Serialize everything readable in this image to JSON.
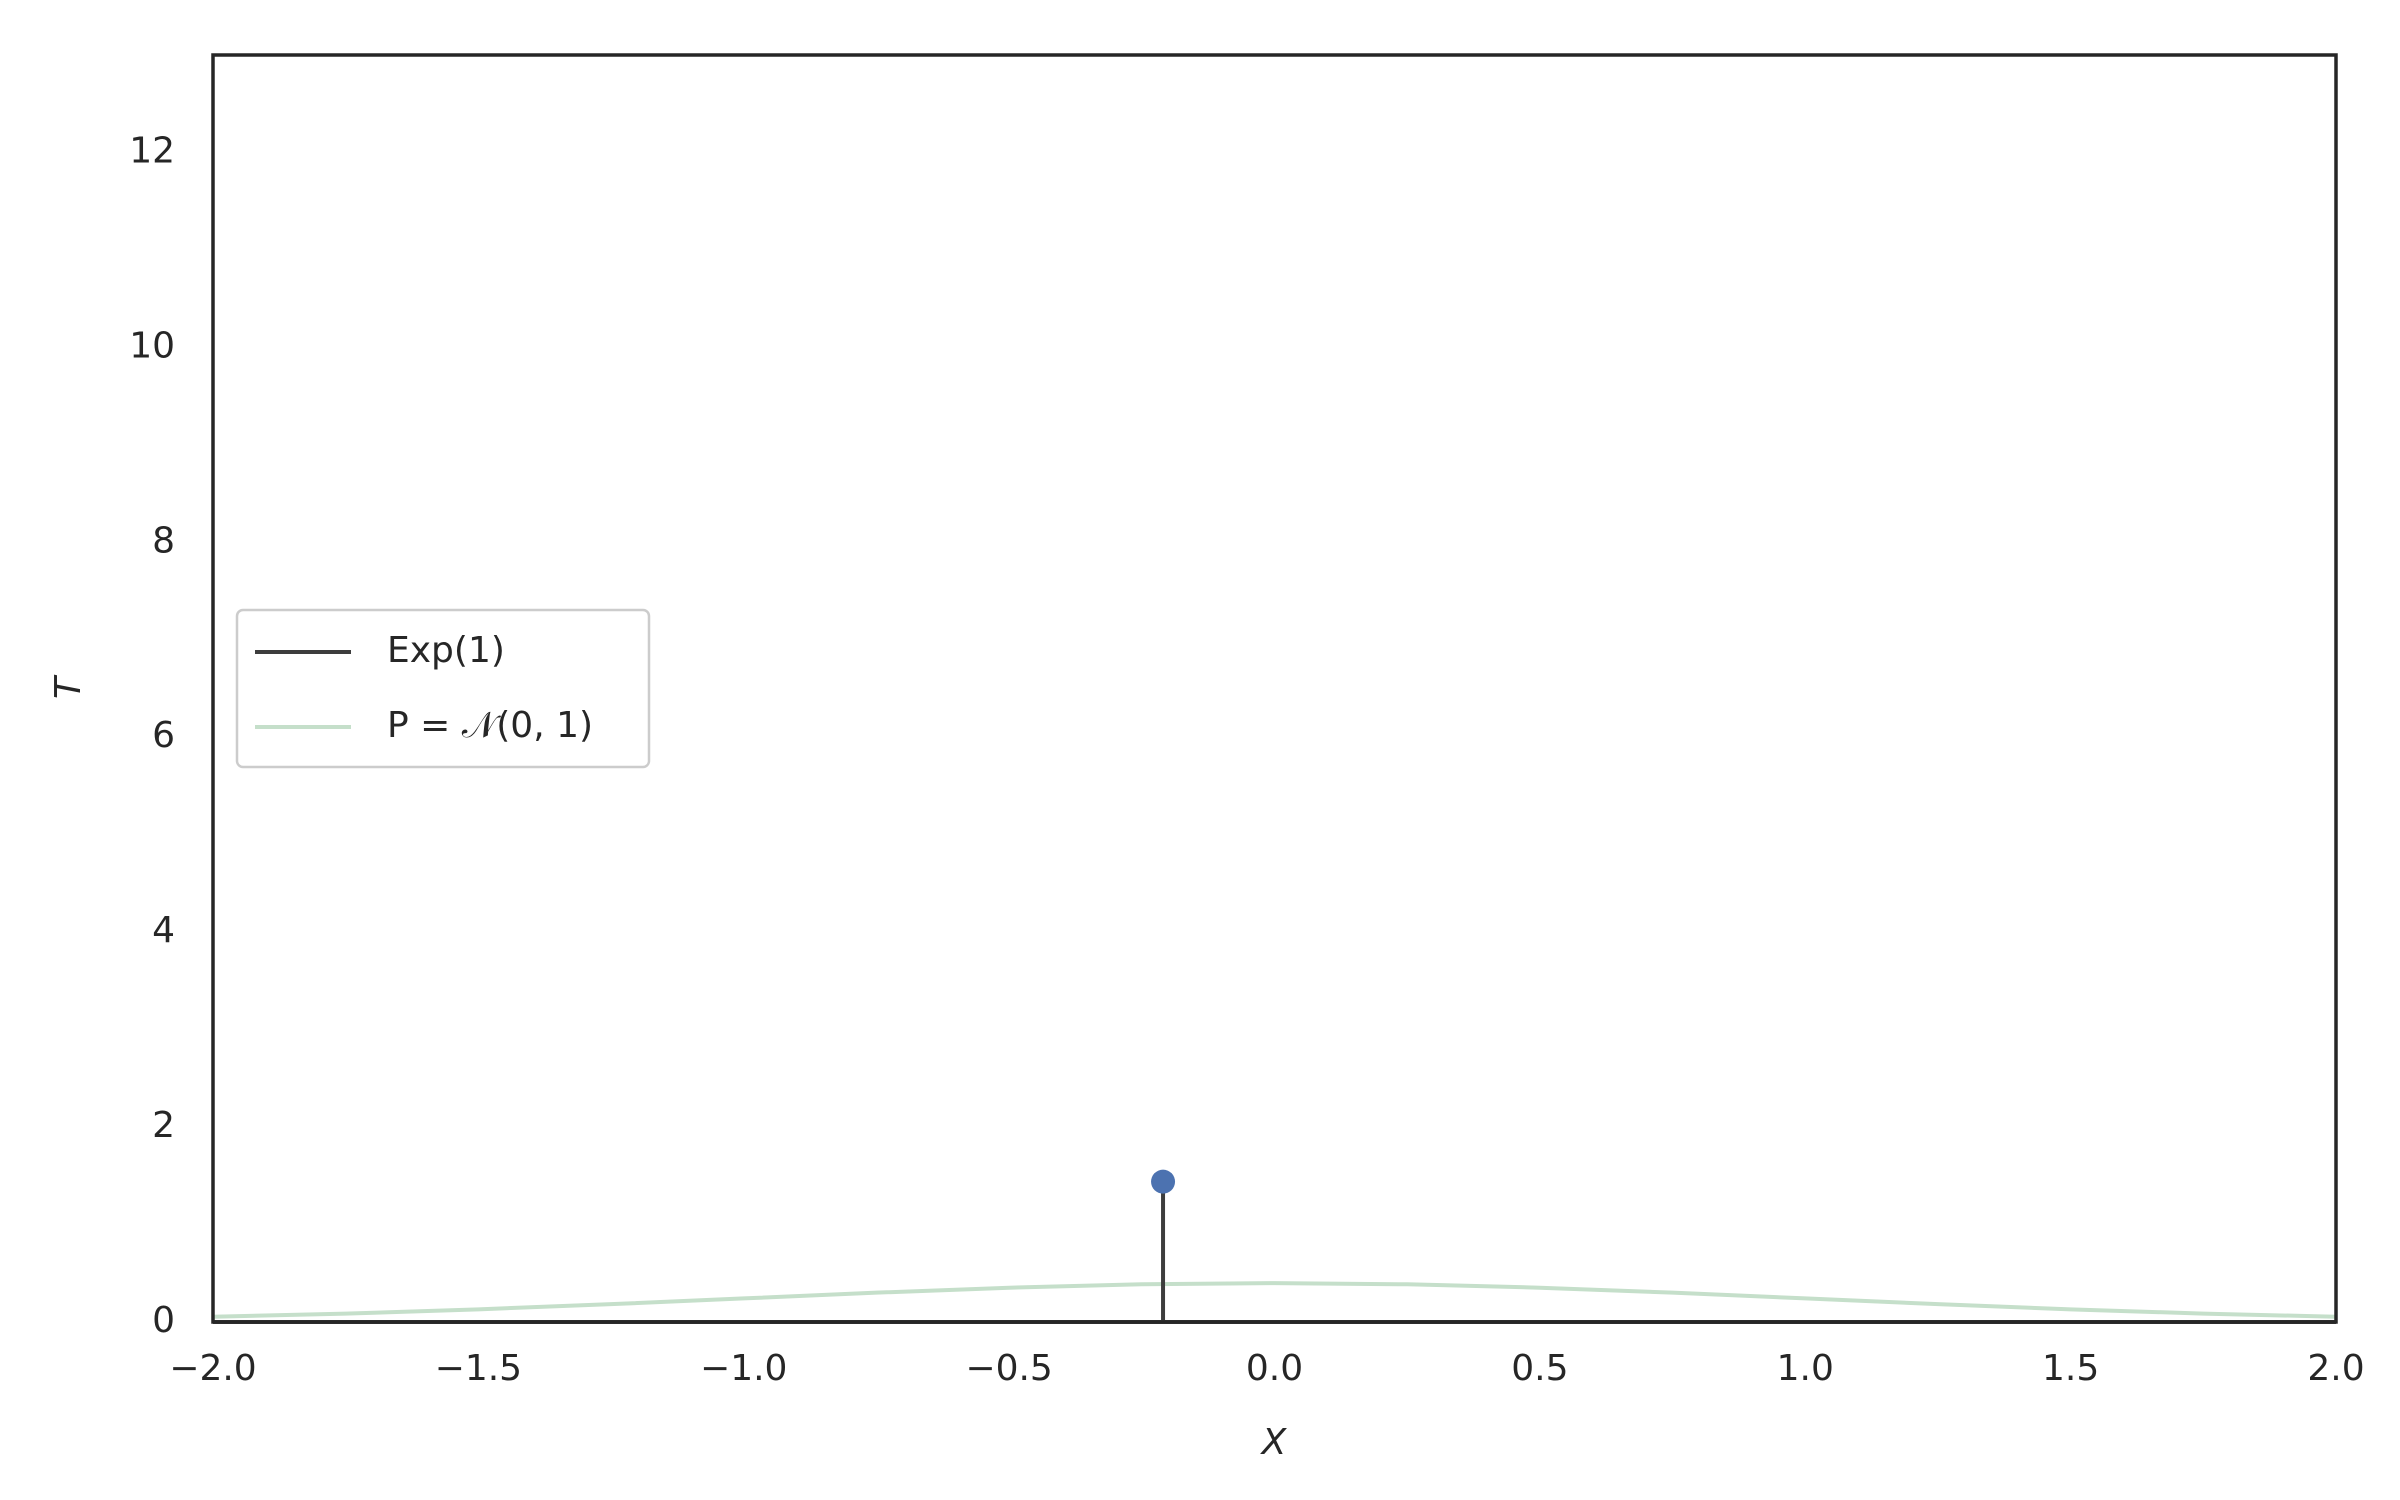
{
  "chart_data": {
    "type": "line",
    "xlabel": "X",
    "ylabel": "T",
    "xlim": [
      -2,
      2
    ],
    "ylim": [
      0,
      13
    ],
    "xticks": [
      {
        "value": -2,
        "label": "−2.0"
      },
      {
        "value": -1.5,
        "label": "−1.5"
      },
      {
        "value": -1,
        "label": "−1.0"
      },
      {
        "value": -0.5,
        "label": "−0.5"
      },
      {
        "value": 0,
        "label": "0.0"
      },
      {
        "value": 0.5,
        "label": "0.5"
      },
      {
        "value": 1,
        "label": "1.0"
      },
      {
        "value": 1.5,
        "label": "1.5"
      },
      {
        "value": 2,
        "label": "2.0"
      }
    ],
    "yticks": [
      0,
      2,
      4,
      6,
      8,
      10,
      12
    ],
    "grid": false,
    "legend": "center left",
    "series": [
      {
        "name": "Exp(1)",
        "color": "#3d3d3d",
        "x": [
          -2,
          2
        ],
        "values": [
          0,
          0
        ]
      },
      {
        "name": "P = 𝒩(0, 1)",
        "color": "#c5dfca",
        "x": [
          -2,
          -1.75,
          -1.5,
          -1.25,
          -1,
          -0.75,
          -0.5,
          -0.25,
          0,
          0.25,
          0.5,
          0.75,
          1,
          1.25,
          1.5,
          1.75,
          2
        ],
        "values": [
          0.054,
          0.086,
          0.13,
          0.183,
          0.242,
          0.301,
          0.352,
          0.387,
          0.399,
          0.387,
          0.352,
          0.301,
          0.242,
          0.183,
          0.13,
          0.086,
          0.054
        ]
      }
    ],
    "stem": {
      "x": -0.21,
      "value": 1.44,
      "color": "#3d3d3d",
      "marker_color": "#4c72b0"
    }
  }
}
